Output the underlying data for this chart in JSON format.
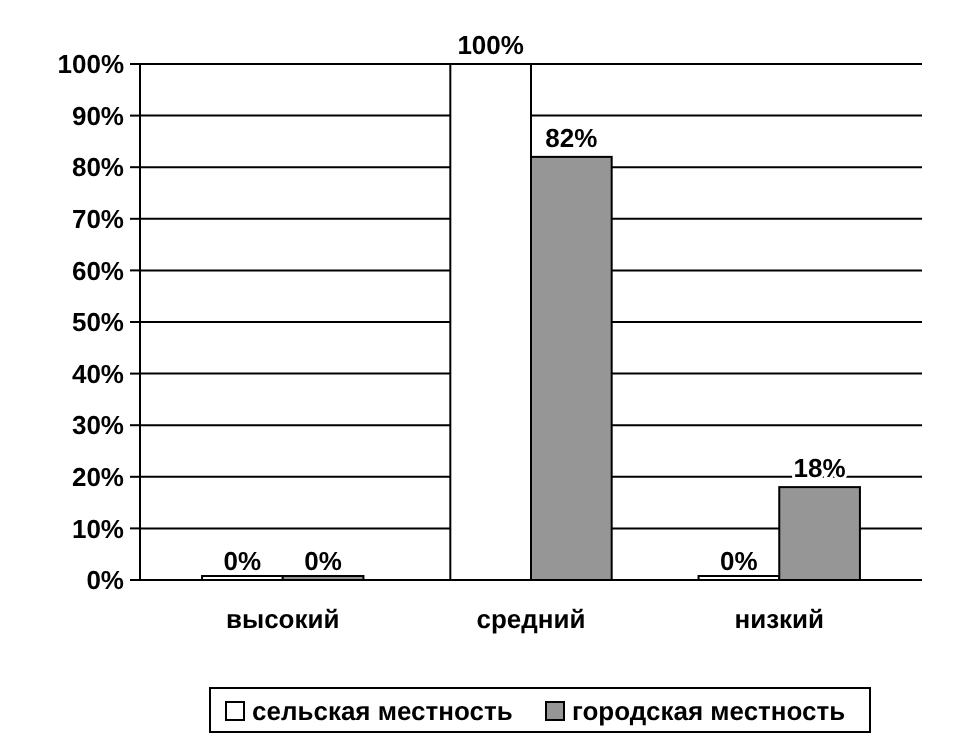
{
  "chart_data": {
    "type": "bar",
    "categories": [
      "высокий",
      "средний",
      "низкий"
    ],
    "series": [
      {
        "name": "сельская местность",
        "color": "#ffffff",
        "values": [
          0,
          100,
          0
        ],
        "value_labels": [
          "0%",
          "100%",
          "0%"
        ]
      },
      {
        "name": "городская местность",
        "color": "#969696",
        "values": [
          0,
          82,
          18
        ],
        "value_labels": [
          "0%",
          "82%",
          "18%"
        ]
      }
    ],
    "ylim": [
      0,
      100
    ],
    "yticks": [
      {
        "value": 0,
        "label": "0%"
      },
      {
        "value": 10,
        "label": "10%"
      },
      {
        "value": 20,
        "label": "20%"
      },
      {
        "value": 30,
        "label": "30%"
      },
      {
        "value": 40,
        "label": "40%"
      },
      {
        "value": 50,
        "label": "50%"
      },
      {
        "value": 60,
        "label": "60%"
      },
      {
        "value": 70,
        "label": "70%"
      },
      {
        "value": 80,
        "label": "80%"
      },
      {
        "value": 90,
        "label": "90%"
      },
      {
        "value": 100,
        "label": "100%"
      }
    ],
    "grid": "y",
    "legend": "bottom"
  }
}
